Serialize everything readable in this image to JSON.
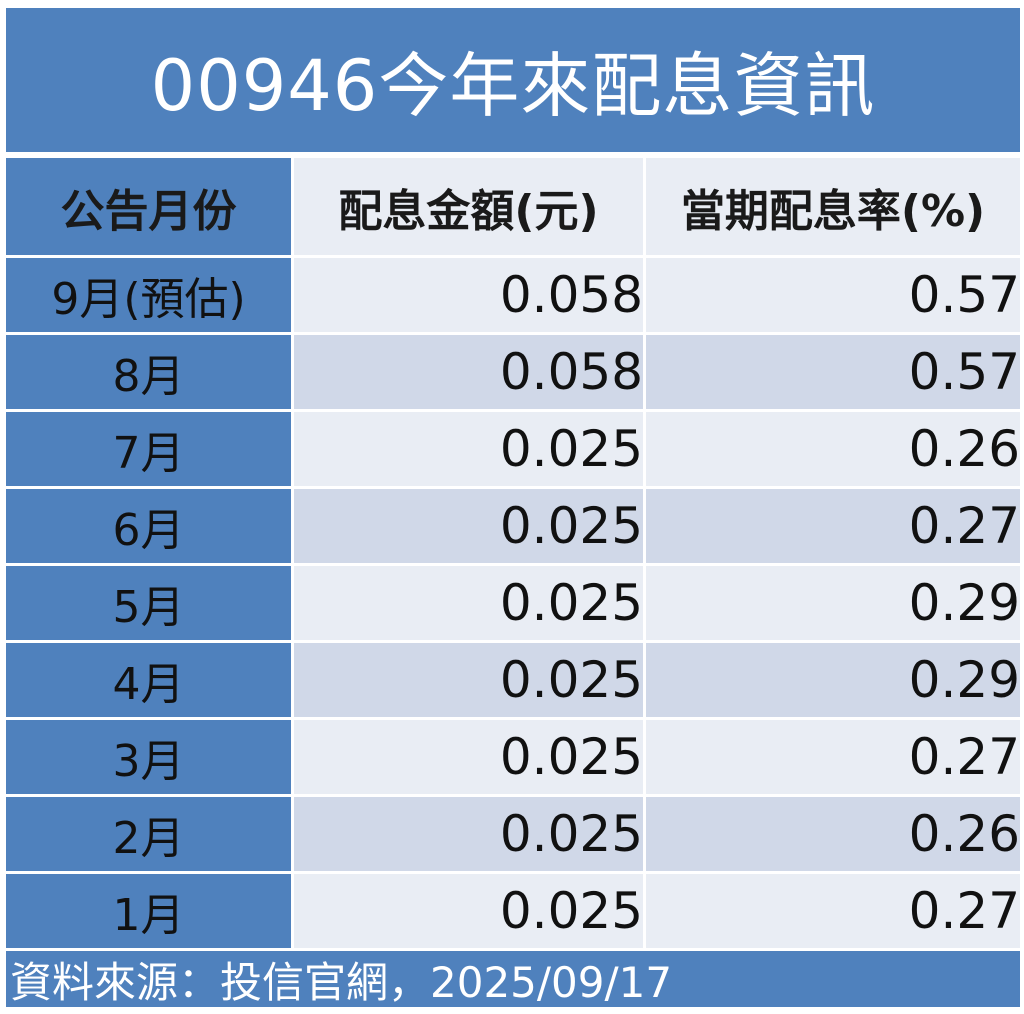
{
  "title": "00946今年來配息資訊",
  "headers": [
    "公告月份",
    "配息金額(元)",
    "當期配息率(%)"
  ],
  "rows": [
    {
      "month": "9月(預估)",
      "amount": "0.058",
      "rate": "0.57"
    },
    {
      "month": "8月",
      "amount": "0.058",
      "rate": "0.57"
    },
    {
      "month": "7月",
      "amount": "0.025",
      "rate": "0.26"
    },
    {
      "month": "6月",
      "amount": "0.025",
      "rate": "0.27"
    },
    {
      "month": "5月",
      "amount": "0.025",
      "rate": "0.29"
    },
    {
      "month": "4月",
      "amount": "0.025",
      "rate": "0.29"
    },
    {
      "month": "3月",
      "amount": "0.025",
      "rate": "0.27"
    },
    {
      "month": "2月",
      "amount": "0.025",
      "rate": "0.26"
    },
    {
      "month": "1月",
      "amount": "0.025",
      "rate": "0.27"
    }
  ],
  "source": "資料來源：投信官網，2025/09/17",
  "colors": {
    "accent": "#4f81bd",
    "row_light": "#e9edf4",
    "row_dark": "#d0d8e8"
  }
}
